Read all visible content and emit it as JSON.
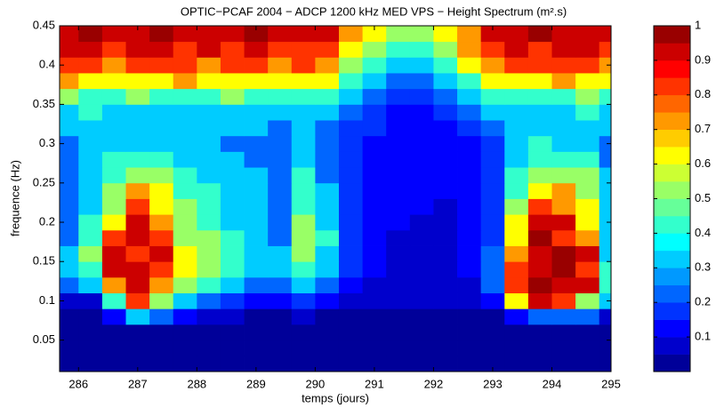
{
  "chart_data": {
    "type": "heatmap",
    "title": "OPTIC−PCAF 2004 − ADCP 1200 kHz MED VPS − Height Spectrum (m².s)",
    "x_label": "temps (jours)",
    "y_label": "frequence (Hz)",
    "x": [
      285.8,
      286.2,
      286.6,
      287.0,
      287.4,
      287.8,
      288.2,
      288.6,
      289.0,
      289.4,
      289.8,
      290.2,
      290.6,
      291.0,
      291.4,
      291.8,
      292.2,
      292.6,
      293.0,
      293.4,
      293.8,
      294.2,
      294.6,
      295.0
    ],
    "y": [
      0.02,
      0.04,
      0.06,
      0.08,
      0.1,
      0.12,
      0.14,
      0.16,
      0.18,
      0.2,
      0.22,
      0.24,
      0.26,
      0.28,
      0.3,
      0.32,
      0.34,
      0.36,
      0.38,
      0.4,
      0.42,
      0.44
    ],
    "z": [
      [
        0.02,
        0.02,
        0.02,
        0.02,
        0.02,
        0.02,
        0.02,
        0.02,
        0.02,
        0.02,
        0.02,
        0.02,
        0.02,
        0.02,
        0.02,
        0.02,
        0.02,
        0.02,
        0.02,
        0.02,
        0.02,
        0.02,
        0.02,
        0.02
      ],
      [
        0.02,
        0.02,
        0.02,
        0.02,
        0.02,
        0.02,
        0.02,
        0.02,
        0.02,
        0.02,
        0.02,
        0.02,
        0.02,
        0.02,
        0.02,
        0.02,
        0.02,
        0.02,
        0.02,
        0.02,
        0.02,
        0.02,
        0.02,
        0.02
      ],
      [
        0.02,
        0.02,
        0.02,
        0.02,
        0.02,
        0.02,
        0.02,
        0.02,
        0.02,
        0.02,
        0.02,
        0.02,
        0.02,
        0.02,
        0.02,
        0.02,
        0.02,
        0.02,
        0.02,
        0.02,
        0.02,
        0.02,
        0.02,
        0.02
      ],
      [
        0.03,
        0.03,
        0.1,
        0.3,
        0.2,
        0.1,
        0.05,
        0.05,
        0.03,
        0.03,
        0.05,
        0.03,
        0.03,
        0.03,
        0.03,
        0.03,
        0.03,
        0.03,
        0.03,
        0.1,
        0.2,
        0.2,
        0.2,
        0.05
      ],
      [
        0.05,
        0.05,
        0.4,
        0.8,
        0.5,
        0.3,
        0.2,
        0.15,
        0.1,
        0.1,
        0.15,
        0.1,
        0.05,
        0.05,
        0.05,
        0.05,
        0.05,
        0.05,
        0.1,
        0.6,
        0.9,
        0.8,
        0.5,
        0.3
      ],
      [
        0.2,
        0.3,
        0.7,
        0.9,
        0.7,
        0.5,
        0.4,
        0.3,
        0.2,
        0.2,
        0.3,
        0.2,
        0.1,
        0.08,
        0.06,
        0.06,
        0.06,
        0.08,
        0.2,
        0.8,
        1.0,
        0.9,
        0.9,
        0.4
      ],
      [
        0.3,
        0.4,
        0.9,
        0.9,
        0.8,
        0.6,
        0.5,
        0.4,
        0.3,
        0.3,
        0.4,
        0.3,
        0.15,
        0.1,
        0.08,
        0.08,
        0.08,
        0.1,
        0.2,
        0.8,
        0.9,
        1.0,
        0.8,
        0.4
      ],
      [
        0.3,
        0.5,
        0.9,
        0.8,
        0.9,
        0.6,
        0.5,
        0.4,
        0.3,
        0.3,
        0.5,
        0.3,
        0.15,
        0.1,
        0.08,
        0.08,
        0.08,
        0.1,
        0.2,
        0.7,
        0.9,
        1.0,
        0.9,
        0.3
      ],
      [
        0.2,
        0.4,
        0.8,
        0.9,
        0.8,
        0.5,
        0.5,
        0.4,
        0.3,
        0.2,
        0.5,
        0.4,
        0.15,
        0.1,
        0.08,
        0.08,
        0.08,
        0.1,
        0.15,
        0.6,
        1.0,
        0.8,
        0.7,
        0.3
      ],
      [
        0.2,
        0.4,
        0.6,
        0.9,
        0.7,
        0.5,
        0.4,
        0.3,
        0.3,
        0.2,
        0.5,
        0.3,
        0.15,
        0.1,
        0.1,
        0.08,
        0.08,
        0.1,
        0.15,
        0.6,
        0.9,
        0.9,
        0.6,
        0.3
      ],
      [
        0.2,
        0.3,
        0.5,
        0.8,
        0.6,
        0.5,
        0.4,
        0.3,
        0.3,
        0.2,
        0.4,
        0.3,
        0.15,
        0.1,
        0.1,
        0.1,
        0.08,
        0.1,
        0.15,
        0.5,
        0.8,
        0.7,
        0.6,
        0.3
      ],
      [
        0.2,
        0.3,
        0.5,
        0.7,
        0.6,
        0.4,
        0.4,
        0.3,
        0.3,
        0.2,
        0.4,
        0.3,
        0.15,
        0.1,
        0.1,
        0.1,
        0.1,
        0.1,
        0.15,
        0.4,
        0.6,
        0.7,
        0.5,
        0.3
      ],
      [
        0.2,
        0.3,
        0.4,
        0.5,
        0.5,
        0.4,
        0.3,
        0.3,
        0.3,
        0.2,
        0.4,
        0.2,
        0.15,
        0.1,
        0.1,
        0.1,
        0.1,
        0.1,
        0.15,
        0.4,
        0.5,
        0.5,
        0.5,
        0.3
      ],
      [
        0.2,
        0.3,
        0.4,
        0.4,
        0.4,
        0.3,
        0.3,
        0.3,
        0.2,
        0.2,
        0.3,
        0.2,
        0.15,
        0.1,
        0.1,
        0.1,
        0.1,
        0.1,
        0.15,
        0.3,
        0.4,
        0.4,
        0.4,
        0.2
      ],
      [
        0.2,
        0.3,
        0.3,
        0.3,
        0.3,
        0.3,
        0.3,
        0.2,
        0.2,
        0.2,
        0.3,
        0.2,
        0.15,
        0.1,
        0.1,
        0.1,
        0.1,
        0.1,
        0.15,
        0.3,
        0.4,
        0.3,
        0.3,
        0.2
      ],
      [
        0.3,
        0.3,
        0.3,
        0.3,
        0.3,
        0.3,
        0.3,
        0.3,
        0.3,
        0.2,
        0.3,
        0.2,
        0.15,
        0.15,
        0.1,
        0.1,
        0.1,
        0.15,
        0.2,
        0.3,
        0.3,
        0.3,
        0.3,
        0.3
      ],
      [
        0.3,
        0.4,
        0.3,
        0.3,
        0.3,
        0.3,
        0.3,
        0.3,
        0.3,
        0.3,
        0.3,
        0.3,
        0.2,
        0.15,
        0.1,
        0.1,
        0.15,
        0.2,
        0.3,
        0.3,
        0.3,
        0.3,
        0.4,
        0.3
      ],
      [
        0.5,
        0.4,
        0.4,
        0.5,
        0.4,
        0.4,
        0.4,
        0.5,
        0.4,
        0.4,
        0.4,
        0.4,
        0.3,
        0.2,
        0.15,
        0.15,
        0.2,
        0.3,
        0.4,
        0.4,
        0.4,
        0.4,
        0.5,
        0.4
      ],
      [
        0.7,
        0.6,
        0.6,
        0.6,
        0.6,
        0.7,
        0.6,
        0.6,
        0.6,
        0.6,
        0.6,
        0.6,
        0.4,
        0.3,
        0.2,
        0.2,
        0.3,
        0.4,
        0.6,
        0.6,
        0.6,
        0.7,
        0.6,
        0.6
      ],
      [
        0.8,
        0.8,
        0.7,
        0.8,
        0.8,
        0.8,
        0.7,
        0.8,
        0.8,
        0.7,
        0.8,
        0.7,
        0.5,
        0.4,
        0.3,
        0.3,
        0.4,
        0.6,
        0.7,
        0.8,
        0.8,
        0.8,
        0.8,
        0.7
      ],
      [
        0.9,
        0.9,
        0.8,
        0.9,
        0.9,
        0.8,
        0.9,
        0.8,
        0.9,
        0.8,
        0.8,
        0.8,
        0.6,
        0.5,
        0.4,
        0.4,
        0.5,
        0.7,
        0.8,
        0.9,
        0.8,
        0.9,
        0.9,
        0.8
      ],
      [
        0.9,
        1.0,
        0.9,
        0.9,
        1.0,
        0.9,
        0.9,
        0.9,
        1.0,
        0.9,
        0.9,
        0.9,
        0.7,
        0.6,
        0.5,
        0.5,
        0.6,
        0.7,
        0.9,
        0.9,
        1.0,
        0.9,
        0.9,
        0.9
      ]
    ],
    "xlim": [
      285.68,
      295
    ],
    "ylim": [
      0.01,
      0.45
    ],
    "xticks": [
      286,
      287,
      288,
      289,
      290,
      291,
      292,
      293,
      294,
      295
    ],
    "yticks": [
      0.05,
      0.1,
      0.15,
      0.2,
      0.25,
      0.3,
      0.35,
      0.4,
      0.45
    ],
    "clim": [
      0,
      1
    ],
    "cticks": [
      0.1,
      0.2,
      0.3,
      0.4,
      0.5,
      0.6,
      0.7,
      0.8,
      0.9,
      1
    ],
    "colormap": "jet",
    "levels": 20
  }
}
